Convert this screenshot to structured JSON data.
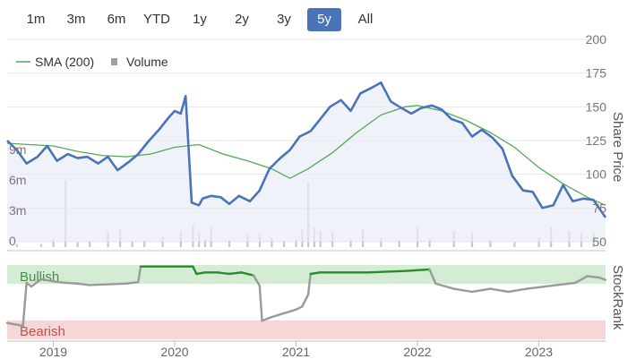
{
  "range_selector": {
    "buttons": [
      "1m",
      "3m",
      "6m",
      "YTD",
      "1y",
      "2y",
      "3y",
      "5y",
      "All"
    ],
    "active": "5y"
  },
  "legend": {
    "sma_label": "SMA (200)",
    "volume_label": "Volume"
  },
  "colors": {
    "price": "#4a74b7",
    "sma": "#55a955",
    "volume": "#c8c8c8",
    "bullish_band": "#d4ecd4",
    "bearish_band": "#f6d6d6",
    "stockrank_bull": "#2b8a2b",
    "stockrank_neutral": "#9a9a9a",
    "active_button": "#4a74b7"
  },
  "chart_data": {
    "type": "line",
    "x_range": [
      "2018-08",
      "2023-07"
    ],
    "x_ticks": [
      "2019",
      "2020",
      "2021",
      "2022",
      "2023"
    ],
    "price_axis": {
      "title": "Share Price",
      "ticks": [
        "200",
        "175",
        "150",
        "125",
        "100",
        "75",
        "50"
      ],
      "ylim": [
        50,
        200
      ]
    },
    "volume_axis": {
      "ticks": [
        "9m",
        "6m",
        "3m",
        "0"
      ],
      "ylim": [
        0,
        9
      ]
    },
    "stockrank_axis": {
      "title": "StockRank",
      "ylim": [
        0,
        100
      ]
    },
    "bands": {
      "bullish_label": "Bullish",
      "bearish_label": "Bearish"
    },
    "series": [
      {
        "name": "Share Price",
        "x": [
          2018.62,
          2018.7,
          2018.78,
          2018.87,
          2018.95,
          2019.03,
          2019.12,
          2019.2,
          2019.28,
          2019.37,
          2019.45,
          2019.53,
          2019.62,
          2019.7,
          2019.78,
          2019.87,
          2019.95,
          2020.0,
          2020.05,
          2020.09,
          2020.14,
          2020.2,
          2020.23,
          2020.3,
          2020.38,
          2020.45,
          2020.53,
          2020.62,
          2020.7,
          2020.78,
          2020.87,
          2020.95,
          2021.03,
          2021.12,
          2021.2,
          2021.28,
          2021.37,
          2021.45,
          2021.53,
          2021.62,
          2021.7,
          2021.78,
          2021.87,
          2021.95,
          2022.03,
          2022.12,
          2022.2,
          2022.28,
          2022.37,
          2022.45,
          2022.53,
          2022.62,
          2022.7,
          2022.78,
          2022.87,
          2022.95,
          2023.03,
          2023.12,
          2023.2,
          2023.28,
          2023.37,
          2023.45,
          2023.55
        ],
        "values": [
          125,
          118,
          108,
          113,
          121,
          110,
          115,
          112,
          113,
          108,
          113,
          103,
          109,
          115,
          124,
          133,
          142,
          147,
          145,
          158,
          79,
          77,
          82,
          84,
          83,
          78,
          84,
          80,
          88,
          104,
          112,
          118,
          128,
          132,
          141,
          150,
          155,
          147,
          160,
          164,
          168,
          154,
          149,
          145,
          149,
          151,
          148,
          141,
          138,
          128,
          133,
          127,
          119,
          99,
          88,
          87,
          75,
          77,
          92,
          80,
          82,
          81,
          68
        ],
        "color_key": "price"
      },
      {
        "name": "SMA (200)",
        "x": [
          2018.62,
          2018.8,
          2019.0,
          2019.2,
          2019.4,
          2019.6,
          2019.8,
          2020.0,
          2020.2,
          2020.4,
          2020.6,
          2020.8,
          2020.95,
          2021.1,
          2021.3,
          2021.5,
          2021.7,
          2021.9,
          2022.0,
          2022.2,
          2022.4,
          2022.6,
          2022.8,
          2023.0,
          2023.2,
          2023.4,
          2023.55
        ],
        "values": [
          123,
          122,
          121,
          117,
          114,
          113,
          115,
          120,
          122,
          115,
          110,
          104,
          97,
          104,
          116,
          131,
          144,
          150,
          151,
          147,
          140,
          131,
          120,
          105,
          93,
          83,
          77
        ],
        "color_key": "sma"
      },
      {
        "name": "Volume",
        "unit": "m",
        "x": [
          2018.7,
          2018.9,
          2019.0,
          2019.1,
          2019.2,
          2019.3,
          2019.45,
          2019.55,
          2019.65,
          2019.75,
          2019.9,
          2020.05,
          2020.15,
          2020.2,
          2020.25,
          2020.3,
          2020.45,
          2020.6,
          2020.7,
          2020.8,
          2020.9,
          2021.0,
          2021.05,
          2021.1,
          2021.15,
          2021.2,
          2021.3,
          2021.45,
          2021.55,
          2021.7,
          2021.85,
          2022.0,
          2022.1,
          2022.3,
          2022.45,
          2022.6,
          2022.8,
          2023.0,
          2023.1,
          2023.25,
          2023.35,
          2023.45
        ],
        "values": [
          0.3,
          0.3,
          0.8,
          6.6,
          0.5,
          0.6,
          1.5,
          1.7,
          0.6,
          0.7,
          1.0,
          1.5,
          2.2,
          1.5,
          0.8,
          1.9,
          0.7,
          1.2,
          1.3,
          0.9,
          0.6,
          0.8,
          1.7,
          6.4,
          1.9,
          1.6,
          1.5,
          0.8,
          1.8,
          0.9,
          0.7,
          1.9,
          0.8,
          1.6,
          1.5,
          0.7,
          0.5,
          0.9,
          2.0,
          1.6,
          1.5,
          1.4
        ],
        "color_key": "volume"
      },
      {
        "name": "StockRank",
        "x": [
          2018.62,
          2018.75,
          2018.78,
          2018.82,
          2018.9,
          2019.0,
          2019.1,
          2019.2,
          2019.3,
          2019.45,
          2019.6,
          2019.7,
          2019.72,
          2019.85,
          2020.0,
          2020.15,
          2020.18,
          2020.25,
          2020.35,
          2020.45,
          2020.55,
          2020.65,
          2020.7,
          2020.72,
          2020.8,
          2020.9,
          2021.0,
          2021.05,
          2021.1,
          2021.12,
          2021.2,
          2021.3,
          2021.45,
          2021.6,
          2021.75,
          2021.9,
          2022.0,
          2022.1,
          2022.15,
          2022.3,
          2022.45,
          2022.6,
          2022.75,
          2022.9,
          2023.05,
          2023.2,
          2023.3,
          2023.4,
          2023.5,
          2023.55
        ],
        "values": [
          22,
          18,
          76,
          71,
          81,
          78,
          76,
          75,
          73,
          74,
          75,
          77,
          98,
          98,
          98,
          98,
          88,
          90,
          90,
          88,
          90,
          86,
          72,
          25,
          30,
          35,
          40,
          44,
          60,
          88,
          90,
          90,
          90,
          90,
          91,
          92,
          93,
          94,
          75,
          68,
          64,
          68,
          64,
          68,
          71,
          74,
          76,
          85,
          83,
          80
        ]
      }
    ]
  }
}
